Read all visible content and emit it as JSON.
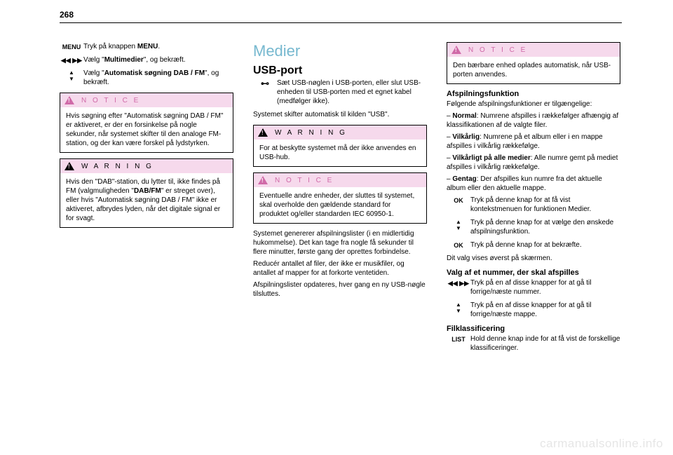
{
  "page_number": "268",
  "watermark": "carmanualsonline.info",
  "colors": {
    "h1": "#76b8cf",
    "box_header_bg": "#f6d9ec",
    "notice_text": "#d06aa8",
    "warning_text": "#000000"
  },
  "col1": {
    "rows": [
      {
        "icon": "MENU",
        "text": "Tryk på knappen <b>MENU</b>."
      },
      {
        "icon": "◀◀ ▶▶",
        "text": "Vælg \"<b>Multimedier</b>\", og bekræft."
      },
      {
        "icon_stack": [
          "▲",
          "▼"
        ],
        "text": "Vælg \"<b>Automatisk søgning DAB / FM</b>\", og bekræft."
      }
    ],
    "notice": {
      "title": "N O T I C E",
      "body": "Hvis søgning efter \"Automatisk søgning DAB / FM\" er aktiveret, er der en forsinkelse på nogle sekunder, når systemet skifter til den analoge FM-station, og der kan være forskel på lydstyrken."
    },
    "warning": {
      "title": "W A R N I N G",
      "body": "Hvis den \"DAB\"-station, du lytter til, ikke findes på FM (valgmuligheden \"<b>DAB/FM</b>\" er streget over), eller hvis \"Automatisk søgning DAB / FM\" ikke er aktiveret, afbrydes lyden, når det digitale signal er for svagt."
    }
  },
  "col2": {
    "h1": "Medier",
    "h2": "USB-port",
    "usb_row": "Sæt USB-nøglen i USB-porten, eller slut USB-enheden til USB-porten med et egnet kabel (medfølger ikke).",
    "after_usb": "Systemet skifter automatisk til kilden \"USB\".",
    "warning": {
      "title": "W A R N I N G",
      "body": "For at beskytte systemet må der ikke anvendes en USB-hub."
    },
    "notice": {
      "title": "N O T I C E",
      "body": "Eventuelle andre enheder, der sluttes til systemet, skal overholde den gældende standard for produktet og/eller standarden IEC 60950-1."
    },
    "p1": "Systemet genererer afspilningslister (i en midlertidig hukommelse). Det kan tage fra nogle få sekunder til flere minutter, første gang der oprettes forbindelse.",
    "p2": "Reducér antallet af filer, der ikke er musikfiler, og antallet af mapper for at forkorte ventetiden.",
    "p3": "Afspilningslister opdateres, hver gang en ny USB-nøgle tilsluttes."
  },
  "col3": {
    "notice": {
      "title": "N O T I C E",
      "body": "Den bærbare enhed oplades automatisk, når USB-porten anvendes."
    },
    "h3a": "Afspilningsfunktion",
    "p1": "Følgende afspilningsfunktioner er tilgængelige:",
    "li1": "– <b>Normal</b>: Numrene afspilles i rækkefølger afhængig af klassifikationen af de valgte filer.",
    "li2": "– <b>Vilkårlig</b>: Numrene på et album eller i en mappe afspilles i vilkårlig rækkefølge.",
    "li3": "– <b>Vilkårligt på alle medier</b>: Alle numre gemt på mediet afspilles i vilkårlig rækkefølge.",
    "li4": "– <b>Gentag</b>: Der afspilles kun numre fra det aktuelle album eller den aktuelle mappe.",
    "rows": [
      {
        "icon": "OK",
        "text": "Tryk på denne knap for at få vist kontekstmenuen for funktionen Medier."
      },
      {
        "icon_stack": [
          "▲",
          "▼"
        ],
        "text": "Tryk på denne knap for at vælge den ønskede afspilningsfunktion."
      },
      {
        "icon": "OK",
        "text": "Tryk på denne knap for at bekræfte."
      }
    ],
    "p2": "Dit valg vises øverst på skærmen.",
    "h3b": "Valg af et nummer, der skal afspilles",
    "rows2": [
      {
        "icon": "◀◀ ▶▶",
        "text": "Tryk på en af disse knapper for at gå til forrige/næste nummer."
      },
      {
        "icon_stack": [
          "▲",
          "▼"
        ],
        "text": "Tryk på en af disse knapper for at gå til forrige/næste mappe."
      }
    ],
    "h3c": "Filklassificering",
    "rows3": [
      {
        "icon": "LIST",
        "text": "Hold denne knap inde for at få vist de forskellige klassificeringer."
      }
    ]
  }
}
